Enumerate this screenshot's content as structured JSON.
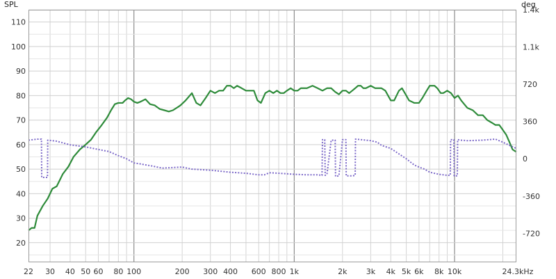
{
  "chart_data": {
    "type": "line",
    "ylabel_left": "SPL",
    "ylabel_right": "deg",
    "x_scale": "log",
    "xlim": [
      22,
      24300
    ],
    "ylim_left": [
      12,
      115
    ],
    "ylim_right": [
      -1000,
      1440
    ],
    "grid": true,
    "x_tick_labels": [
      {
        "v": 22,
        "t": "22"
      },
      {
        "v": 30,
        "t": "30"
      },
      {
        "v": 40,
        "t": "40"
      },
      {
        "v": 50,
        "t": "50"
      },
      {
        "v": 60,
        "t": "60"
      },
      {
        "v": 80,
        "t": "80"
      },
      {
        "v": 100,
        "t": "100"
      },
      {
        "v": 200,
        "t": "200"
      },
      {
        "v": 300,
        "t": "300"
      },
      {
        "v": 400,
        "t": "400"
      },
      {
        "v": 600,
        "t": "600"
      },
      {
        "v": 800,
        "t": "800"
      },
      {
        "v": 1000,
        "t": "1k"
      },
      {
        "v": 2000,
        "t": "2k"
      },
      {
        "v": 3000,
        "t": "3k"
      },
      {
        "v": 4000,
        "t": "4k"
      },
      {
        "v": 5000,
        "t": "5k"
      },
      {
        "v": 6000,
        "t": "6k"
      },
      {
        "v": 8000,
        "t": "8k"
      },
      {
        "v": 10000,
        "t": "10k"
      },
      {
        "v": 24300,
        "t": "24.3kHz"
      }
    ],
    "y_left_ticks": [
      20,
      30,
      40,
      50,
      60,
      70,
      80,
      90,
      100,
      110
    ],
    "y_right_ticks": [
      {
        "v": 1440,
        "t": "1.4k"
      },
      {
        "v": 1080,
        "t": "1.1k"
      },
      {
        "v": 720,
        "t": "720"
      },
      {
        "v": 360,
        "t": "360"
      },
      {
        "v": 0,
        "t": "0"
      },
      {
        "v": -360,
        "t": "-360"
      },
      {
        "v": -720,
        "t": "-720"
      }
    ],
    "series": [
      {
        "axis": "left",
        "style": "solid",
        "color": "#2e8b3a",
        "points": [
          [
            22,
            25
          ],
          [
            23,
            26
          ],
          [
            24,
            26
          ],
          [
            25,
            31
          ],
          [
            27,
            35
          ],
          [
            29,
            38
          ],
          [
            31,
            42
          ],
          [
            33,
            43
          ],
          [
            36,
            48
          ],
          [
            39,
            51
          ],
          [
            42,
            55
          ],
          [
            46,
            58
          ],
          [
            50,
            60
          ],
          [
            54,
            62
          ],
          [
            58,
            65
          ],
          [
            63,
            68
          ],
          [
            68,
            71
          ],
          [
            72,
            74
          ],
          [
            76,
            76.5
          ],
          [
            80,
            77
          ],
          [
            85,
            77
          ],
          [
            88,
            78
          ],
          [
            92,
            79
          ],
          [
            96,
            78.5
          ],
          [
            100,
            77.5
          ],
          [
            105,
            77
          ],
          [
            110,
            77.5
          ],
          [
            118,
            78.5
          ],
          [
            126,
            76.5
          ],
          [
            135,
            76
          ],
          [
            145,
            74.5
          ],
          [
            155,
            74
          ],
          [
            165,
            73.5
          ],
          [
            175,
            74
          ],
          [
            185,
            75
          ],
          [
            195,
            76
          ],
          [
            210,
            78
          ],
          [
            230,
            81
          ],
          [
            245,
            77
          ],
          [
            260,
            76
          ],
          [
            280,
            79
          ],
          [
            300,
            82
          ],
          [
            320,
            81
          ],
          [
            340,
            82
          ],
          [
            360,
            82
          ],
          [
            380,
            84
          ],
          [
            400,
            84
          ],
          [
            420,
            83
          ],
          [
            440,
            84
          ],
          [
            470,
            83
          ],
          [
            500,
            82
          ],
          [
            530,
            82
          ],
          [
            560,
            82
          ],
          [
            590,
            78
          ],
          [
            620,
            77
          ],
          [
            660,
            81
          ],
          [
            700,
            82
          ],
          [
            740,
            81
          ],
          [
            780,
            82
          ],
          [
            820,
            81
          ],
          [
            860,
            81
          ],
          [
            900,
            82
          ],
          [
            950,
            83
          ],
          [
            1000,
            82
          ],
          [
            1050,
            82
          ],
          [
            1100,
            83
          ],
          [
            1200,
            83
          ],
          [
            1300,
            84
          ],
          [
            1400,
            83
          ],
          [
            1500,
            82
          ],
          [
            1600,
            83
          ],
          [
            1700,
            83
          ],
          [
            1800,
            81.5
          ],
          [
            1900,
            80.5
          ],
          [
            2000,
            82
          ],
          [
            2100,
            82
          ],
          [
            2200,
            81
          ],
          [
            2300,
            82
          ],
          [
            2400,
            83
          ],
          [
            2500,
            84
          ],
          [
            2600,
            84
          ],
          [
            2700,
            83
          ],
          [
            2800,
            83
          ],
          [
            3000,
            84
          ],
          [
            3200,
            83
          ],
          [
            3500,
            83
          ],
          [
            3700,
            82
          ],
          [
            4000,
            78
          ],
          [
            4200,
            78
          ],
          [
            4500,
            82
          ],
          [
            4700,
            83
          ],
          [
            5000,
            80
          ],
          [
            5200,
            78
          ],
          [
            5600,
            77
          ],
          [
            6000,
            77
          ],
          [
            6300,
            79
          ],
          [
            6700,
            82
          ],
          [
            7000,
            84
          ],
          [
            7500,
            84
          ],
          [
            7800,
            83
          ],
          [
            8200,
            81
          ],
          [
            8500,
            81
          ],
          [
            9000,
            82
          ],
          [
            9500,
            81
          ],
          [
            10000,
            79
          ],
          [
            10500,
            80
          ],
          [
            11000,
            78
          ],
          [
            12000,
            75
          ],
          [
            13000,
            74
          ],
          [
            14000,
            72
          ],
          [
            15000,
            72
          ],
          [
            16000,
            70
          ],
          [
            17000,
            69
          ],
          [
            18000,
            68
          ],
          [
            19000,
            68
          ],
          [
            20000,
            66
          ],
          [
            21000,
            64
          ],
          [
            22000,
            61
          ],
          [
            23000,
            58
          ],
          [
            24300,
            57
          ]
        ]
      },
      {
        "axis": "right",
        "style": "dotted",
        "color": "#7b68c8",
        "points": [
          [
            22,
            180
          ],
          [
            25,
            190
          ],
          [
            26.5,
            190
          ],
          [
            26.6,
            -180
          ],
          [
            28.9,
            -180
          ],
          [
            29,
            180
          ],
          [
            33,
            170
          ],
          [
            40,
            135
          ],
          [
            50,
            115
          ],
          [
            60,
            90
          ],
          [
            70,
            70
          ],
          [
            80,
            30
          ],
          [
            90,
            0
          ],
          [
            100,
            -40
          ],
          [
            110,
            -50
          ],
          [
            130,
            -70
          ],
          [
            150,
            -90
          ],
          [
            200,
            -80
          ],
          [
            230,
            -100
          ],
          [
            300,
            -110
          ],
          [
            400,
            -130
          ],
          [
            500,
            -140
          ],
          [
            600,
            -155
          ],
          [
            650,
            -155
          ],
          [
            700,
            -135
          ],
          [
            800,
            -140
          ],
          [
            900,
            -145
          ],
          [
            1000,
            -150
          ],
          [
            1200,
            -155
          ],
          [
            1400,
            -155
          ],
          [
            1490,
            -160
          ],
          [
            1500,
            185
          ],
          [
            1550,
            185
          ],
          [
            1560,
            -160
          ],
          [
            1600,
            -150
          ],
          [
            1700,
            180
          ],
          [
            1800,
            180
          ],
          [
            1810,
            -170
          ],
          [
            1900,
            -165
          ],
          [
            2000,
            185
          ],
          [
            2100,
            185
          ],
          [
            2110,
            -165
          ],
          [
            2300,
            -165
          ],
          [
            2400,
            -160
          ],
          [
            2410,
            190
          ],
          [
            2600,
            185
          ],
          [
            3000,
            175
          ],
          [
            3300,
            160
          ],
          [
            3500,
            130
          ],
          [
            4000,
            100
          ],
          [
            5000,
            0
          ],
          [
            5600,
            -60
          ],
          [
            6000,
            -80
          ],
          [
            6500,
            -100
          ],
          [
            7000,
            -130
          ],
          [
            8000,
            -150
          ],
          [
            8500,
            -155
          ],
          [
            9000,
            -160
          ],
          [
            9400,
            -160
          ],
          [
            9450,
            185
          ],
          [
            9900,
            185
          ],
          [
            9950,
            -165
          ],
          [
            10400,
            -165
          ],
          [
            10450,
            185
          ],
          [
            11000,
            180
          ],
          [
            12000,
            175
          ],
          [
            15000,
            180
          ],
          [
            18000,
            190
          ],
          [
            20000,
            160
          ],
          [
            22000,
            130
          ],
          [
            24300,
            100
          ]
        ]
      }
    ]
  }
}
